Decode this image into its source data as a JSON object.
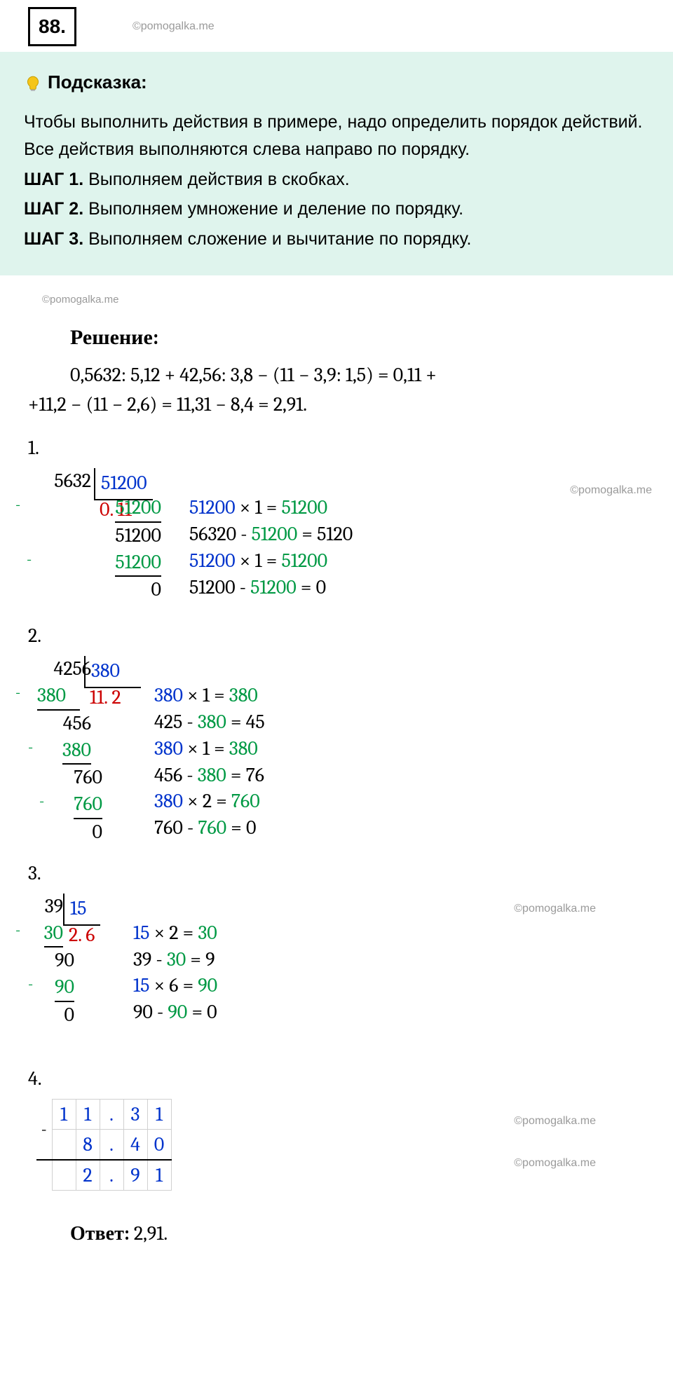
{
  "task_number": "88.",
  "watermark": "©pomogalka.me",
  "hint": {
    "title": "Подсказка:",
    "intro": "Чтобы выполнить действия в примере, надо определить порядок действий. Все действия выполняются слева направо по порядку.",
    "step1_label": "ШАГ 1.",
    "step1_text": " Выполняем действия в скобках.",
    "step2_label": "ШАГ 2.",
    "step2_text": " Выполняем умножение и деление по порядку.",
    "step3_label": "ШАГ 3.",
    "step3_text": " Выполняем сложение и вычитание по порядку."
  },
  "solution_title": "Решение:",
  "expression_line1": "0,5632: 5,12 + 42,56: 3,8 − (11 − 3,9: 1,5) = 0,11 +",
  "expression_line2": "+11,2 − (11 − 2,6) = 11,31 − 8,4 = 2,91.",
  "colors": {
    "blue": "#0033cc",
    "green": "#009944",
    "red": "#cc0000",
    "hint_bg": "#dff4ed",
    "watermark": "#9a9a9a"
  },
  "sec1": {
    "num": "1.",
    "dividend": "5632",
    "divisor": "51200",
    "quotient": "0. 11",
    "rows": [
      "51200",
      "51200",
      "51200",
      "0"
    ],
    "explain": [
      {
        "a": "51200",
        "op": "×",
        "b": "1",
        "eq": "=",
        "r": "51200",
        "ca": "blue",
        "cr": "green"
      },
      {
        "a": "56320",
        "op": "-",
        "b": "51200",
        "eq": "=",
        "r": "5120",
        "cb": "green"
      },
      {
        "a": "51200",
        "op": "×",
        "b": "1",
        "eq": "=",
        "r": "51200",
        "ca": "blue",
        "cr": "green"
      },
      {
        "a": "51200",
        "op": "-",
        "b": "51200",
        "eq": "=",
        "r": "0",
        "cb": "green"
      }
    ]
  },
  "sec2": {
    "num": "2.",
    "dividend": "4256",
    "divisor": "380",
    "quotient": "11. 2",
    "rows": [
      "380",
      "456",
      "380",
      "760",
      "760",
      "0"
    ],
    "explain": [
      {
        "a": "380",
        "op": "×",
        "b": "1",
        "eq": "=",
        "r": "380",
        "ca": "blue",
        "cr": "green"
      },
      {
        "a": "425",
        "op": "-",
        "b": "380",
        "eq": "=",
        "r": "45",
        "cb": "green"
      },
      {
        "a": "380",
        "op": "×",
        "b": "1",
        "eq": "=",
        "r": "380",
        "ca": "blue",
        "cr": "green"
      },
      {
        "a": "456",
        "op": "-",
        "b": "380",
        "eq": "=",
        "r": "76",
        "cb": "green"
      },
      {
        "a": "380",
        "op": "×",
        "b": "2",
        "eq": "=",
        "r": "760",
        "ca": "blue",
        "cr": "green"
      },
      {
        "a": "760",
        "op": "-",
        "b": "760",
        "eq": "=",
        "r": "0",
        "cb": "green"
      }
    ]
  },
  "sec3": {
    "num": "3.",
    "dividend": "39",
    "divisor": "15",
    "quotient": "2. 6",
    "rows": [
      "30",
      "90",
      "90",
      "0"
    ],
    "explain": [
      {
        "a": "15",
        "op": "×",
        "b": "2",
        "eq": "=",
        "r": "30",
        "ca": "blue",
        "cr": "green"
      },
      {
        "a": "39",
        "op": "-",
        "b": "30",
        "eq": "=",
        "r": "9",
        "cb": "green"
      },
      {
        "a": "15",
        "op": "×",
        "b": "6",
        "eq": "=",
        "r": "90",
        "ca": "blue",
        "cr": "green"
      },
      {
        "a": "90",
        "op": "-",
        "b": "90",
        "eq": "=",
        "r": "0",
        "cb": "green"
      }
    ]
  },
  "sec4": {
    "num": "4.",
    "row1": [
      "1",
      "1",
      ".",
      "3",
      "1"
    ],
    "row2": [
      "",
      "8",
      ".",
      "4",
      "0"
    ],
    "row3": [
      "",
      "2",
      ".",
      "9",
      "1"
    ]
  },
  "answer_label": "Ответ:",
  "answer_value": " 2,91."
}
